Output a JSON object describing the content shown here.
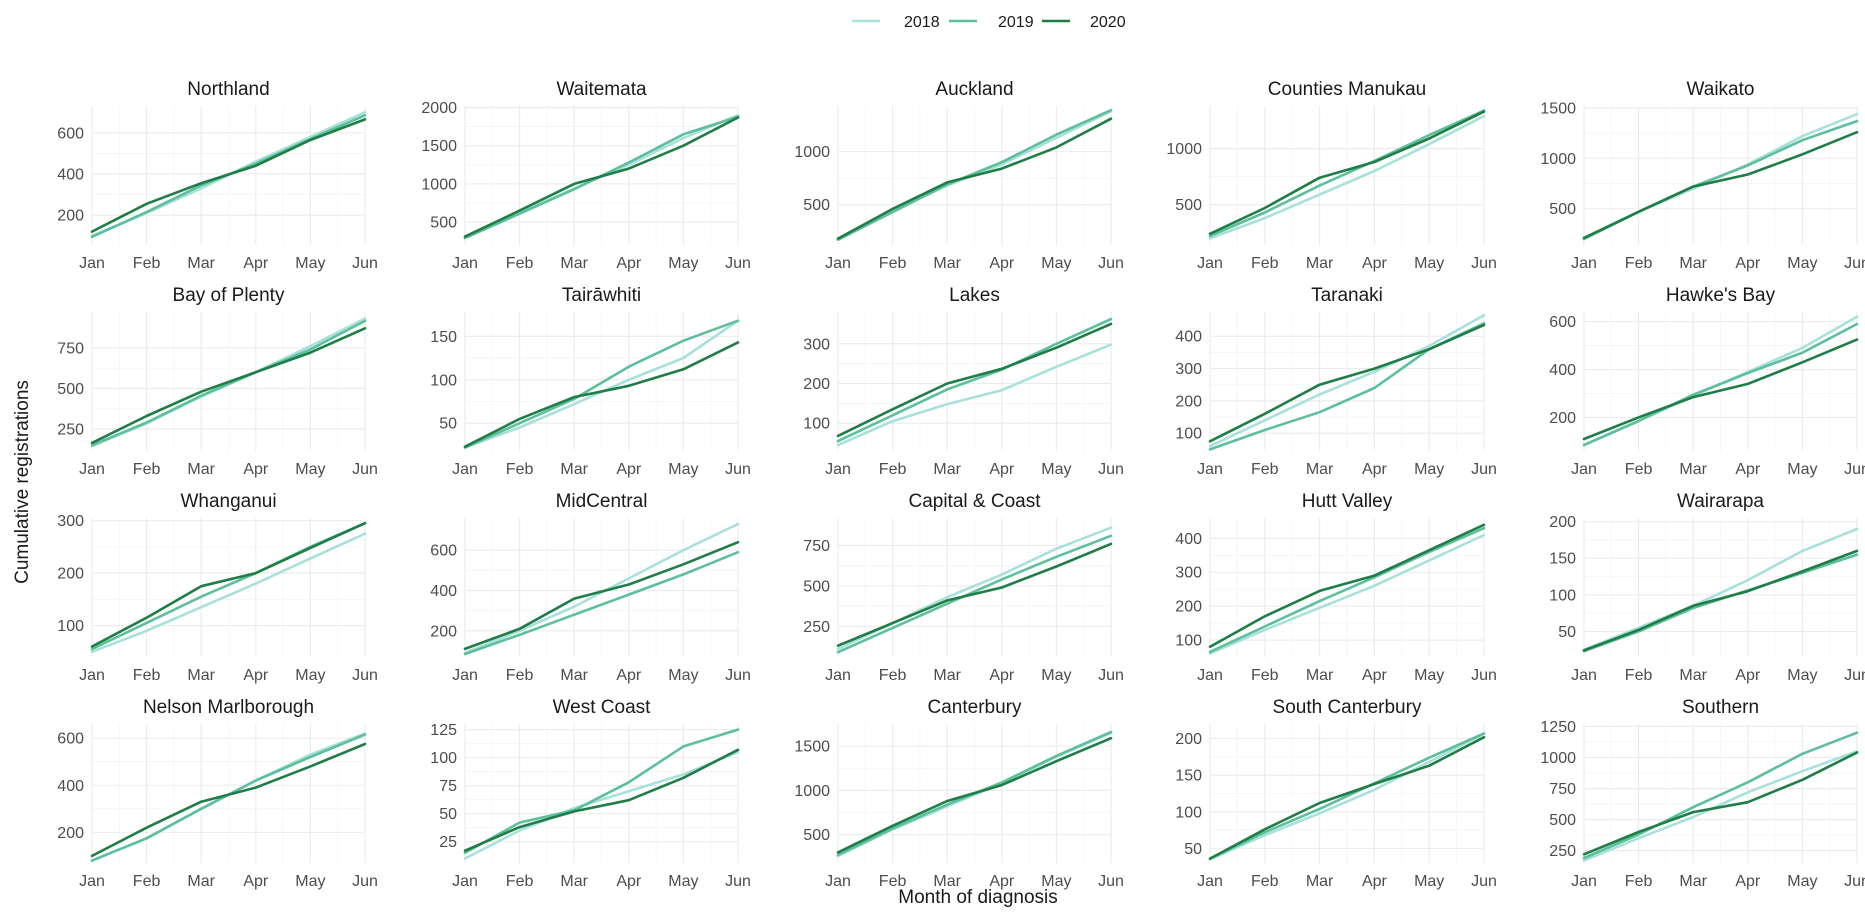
{
  "chart_data": {
    "type": "line",
    "xlabel": "Month of diagnosis",
    "ylabel": "Cumulative registrations",
    "x": [
      "Jan",
      "Feb",
      "Mar",
      "Apr",
      "May",
      "Jun"
    ],
    "legend_position": "top",
    "series_meta": [
      {
        "name": "2018",
        "color": "#a8e0dc"
      },
      {
        "name": "2019",
        "color": "#5dbf9b"
      },
      {
        "name": "2020",
        "color": "#1f7d47"
      }
    ],
    "panels": [
      {
        "title": "Northland",
        "ylim": [
          55,
          730
        ],
        "yticks": [
          200,
          400,
          600
        ],
        "series": {
          "2018": [
            100,
            210,
            330,
            460,
            580,
            700
          ],
          "2019": [
            95,
            215,
            345,
            450,
            570,
            685
          ],
          "2020": [
            120,
            255,
            355,
            440,
            565,
            665
          ]
        }
      },
      {
        "title": "Waitemata",
        "ylim": [
          200,
          2020
        ],
        "yticks": [
          500,
          1000,
          1500,
          2000
        ],
        "series": {
          "2018": [
            300,
            620,
            940,
            1250,
            1600,
            1900
          ],
          "2019": [
            290,
            610,
            930,
            1280,
            1650,
            1880
          ],
          "2020": [
            310,
            650,
            1000,
            1200,
            1500,
            1870
          ]
        }
      },
      {
        "title": "Auckland",
        "ylim": [
          120,
          1430
        ],
        "yticks": [
          500,
          1000
        ],
        "series": {
          "2018": [
            180,
            440,
            680,
            880,
            1130,
            1380
          ],
          "2019": [
            170,
            430,
            690,
            900,
            1160,
            1390
          ],
          "2020": [
            180,
            460,
            710,
            840,
            1040,
            1310
          ]
        }
      },
      {
        "title": "Counties Manukau",
        "ylim": [
          140,
          1380
        ],
        "yticks": [
          500,
          1000
        ],
        "series": {
          "2018": [
            200,
            380,
            590,
            800,
            1040,
            1290
          ],
          "2019": [
            220,
            430,
            670,
            890,
            1120,
            1340
          ],
          "2020": [
            240,
            470,
            740,
            880,
            1090,
            1330
          ]
        }
      },
      {
        "title": "Waikato",
        "ylim": [
          140,
          1520
        ],
        "yticks": [
          500,
          1000,
          1500
        ],
        "series": {
          "2018": [
            200,
            470,
            700,
            940,
            1220,
            1440
          ],
          "2019": [
            200,
            470,
            720,
            930,
            1180,
            1370
          ],
          "2020": [
            210,
            470,
            720,
            840,
            1040,
            1260
          ]
        }
      },
      {
        "title": "Bay of Plenty",
        "ylim": [
          115,
          970
        ],
        "yticks": [
          250,
          500,
          750
        ],
        "series": {
          "2018": [
            145,
            285,
            450,
            600,
            760,
            930
          ],
          "2019": [
            150,
            290,
            455,
            600,
            740,
            915
          ],
          "2020": [
            165,
            330,
            480,
            600,
            720,
            870
          ]
        }
      },
      {
        "title": "Tairāwhiti",
        "ylim": [
          18,
          178
        ],
        "yticks": [
          50,
          100,
          150
        ],
        "series": {
          "2018": [
            22,
            45,
            72,
            100,
            125,
            168
          ],
          "2019": [
            22,
            50,
            78,
            115,
            145,
            168
          ],
          "2020": [
            23,
            55,
            80,
            93,
            112,
            143
          ]
        }
      },
      {
        "title": "Lakes",
        "ylim": [
          30,
          380
        ],
        "yticks": [
          100,
          200,
          300
        ],
        "series": {
          "2018": [
            45,
            105,
            148,
            183,
            242,
            298
          ],
          "2019": [
            55,
            120,
            185,
            235,
            300,
            362
          ],
          "2020": [
            68,
            135,
            200,
            237,
            290,
            350
          ]
        }
      },
      {
        "title": "Taranaki",
        "ylim": [
          45,
          475
        ],
        "yticks": [
          100,
          200,
          300,
          400
        ],
        "series": {
          "2018": [
            60,
            140,
            220,
            290,
            370,
            465
          ],
          "2019": [
            50,
            110,
            165,
            240,
            360,
            440
          ],
          "2020": [
            75,
            160,
            250,
            300,
            360,
            435
          ]
        }
      },
      {
        "title": "Hawke's Bay",
        "ylim": [
          60,
          640
        ],
        "yticks": [
          200,
          400,
          600
        ],
        "series": {
          "2018": [
            85,
            185,
            290,
            390,
            490,
            620
          ],
          "2019": [
            85,
            185,
            295,
            385,
            470,
            590
          ],
          "2020": [
            110,
            200,
            285,
            340,
            430,
            525
          ]
        }
      },
      {
        "title": "Whanganui",
        "ylim": [
          40,
          305
        ],
        "yticks": [
          100,
          200,
          300
        ],
        "series": {
          "2018": [
            50,
            90,
            135,
            180,
            228,
            275
          ],
          "2019": [
            55,
            105,
            155,
            200,
            250,
            295
          ],
          "2020": [
            60,
            115,
            175,
            200,
            248,
            295
          ]
        }
      },
      {
        "title": "MidCentral",
        "ylim": [
          70,
          760
        ],
        "yticks": [
          200,
          400,
          600
        ],
        "series": {
          "2018": [
            90,
            200,
            320,
            460,
            600,
            730
          ],
          "2019": [
            85,
            180,
            280,
            380,
            480,
            590
          ],
          "2020": [
            110,
            210,
            360,
            430,
            530,
            640
          ]
        }
      },
      {
        "title": "Capital & Coast",
        "ylim": [
          60,
          920
        ],
        "yticks": [
          250,
          500,
          750
        ],
        "series": {
          "2018": [
            110,
            270,
            430,
            570,
            730,
            860
          ],
          "2019": [
            90,
            240,
            390,
            540,
            680,
            810
          ],
          "2020": [
            130,
            270,
            410,
            490,
            620,
            760
          ]
        }
      },
      {
        "title": "Hutt Valley",
        "ylim": [
          50,
          460
        ],
        "yticks": [
          100,
          200,
          300,
          400
        ],
        "series": {
          "2018": [
            60,
            130,
            195,
            260,
            335,
            410
          ],
          "2019": [
            65,
            140,
            215,
            285,
            360,
            430
          ],
          "2020": [
            80,
            170,
            245,
            290,
            365,
            440
          ]
        }
      },
      {
        "title": "Wairarapa",
        "ylim": [
          15,
          205
        ],
        "yticks": [
          50,
          100,
          150,
          200
        ],
        "series": {
          "2018": [
            25,
            55,
            85,
            120,
            160,
            190
          ],
          "2019": [
            23,
            50,
            82,
            106,
            130,
            155
          ],
          "2020": [
            24,
            52,
            85,
            105,
            132,
            160
          ]
        }
      },
      {
        "title": "Nelson Marlborough",
        "ylim": [
          70,
          660
        ],
        "yticks": [
          200,
          400,
          600
        ],
        "series": {
          "2018": [
            80,
            175,
            300,
            420,
            530,
            620
          ],
          "2019": [
            80,
            175,
            300,
            420,
            520,
            615
          ],
          "2020": [
            100,
            220,
            330,
            390,
            480,
            575
          ]
        }
      },
      {
        "title": "West Coast",
        "ylim": [
          6,
          130
        ],
        "yticks": [
          25,
          50,
          75,
          100,
          125
        ],
        "series": {
          "2018": [
            10,
            35,
            55,
            70,
            85,
            105
          ],
          "2019": [
            15,
            42,
            53,
            78,
            110,
            125
          ],
          "2020": [
            17,
            38,
            52,
            62,
            82,
            107
          ]
        }
      },
      {
        "title": "Canterbury",
        "ylim": [
          180,
          1750
        ],
        "yticks": [
          500,
          1000,
          1500
        ],
        "series": {
          "2018": [
            260,
            560,
            820,
            1080,
            1380,
            1650
          ],
          "2019": [
            270,
            570,
            840,
            1090,
            1390,
            1660
          ],
          "2020": [
            300,
            600,
            880,
            1060,
            1330,
            1590
          ]
        }
      },
      {
        "title": "South Canterbury",
        "ylim": [
          30,
          220
        ],
        "yticks": [
          50,
          100,
          150,
          200
        ],
        "series": {
          "2018": [
            35,
            68,
            98,
            130,
            168,
            207
          ],
          "2019": [
            36,
            72,
            104,
            139,
            174,
            207
          ],
          "2020": [
            36,
            76,
            112,
            138,
            163,
            202
          ]
        }
      },
      {
        "title": "Southern",
        "ylim": [
          150,
          1270
        ],
        "yticks": [
          250,
          500,
          750,
          1000,
          1250
        ],
        "series": {
          "2018": [
            170,
            350,
            520,
            720,
            890,
            1050
          ],
          "2019": [
            190,
            380,
            600,
            800,
            1030,
            1200
          ],
          "2020": [
            220,
            400,
            560,
            640,
            820,
            1040
          ]
        }
      }
    ]
  }
}
